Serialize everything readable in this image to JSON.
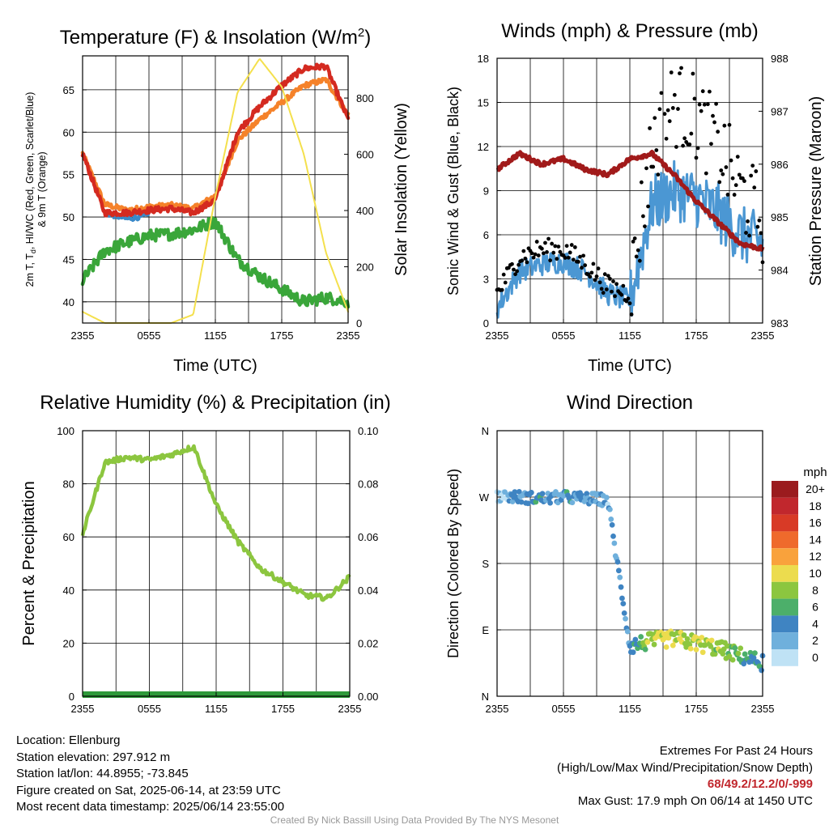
{
  "colors": {
    "temp": "#d42a20",
    "temp9m": "#f5822a",
    "heat_index": "#3a89c9",
    "dewpoint": "#3aa63a",
    "insolation": "#f4e04d",
    "wind": "#4b97d3",
    "gust": "#000000",
    "pressure": "#a11a1a",
    "rh": "#8cc63f",
    "precip": "#2e9a3a"
  },
  "time_ticks": [
    "2355",
    "0555",
    "1155",
    "1755",
    "2355"
  ],
  "charts": {
    "temperature": {
      "title": "Temperature (F) & Insolation (W/m²)",
      "title_main": "Temperature (F) & Insolation (W/m",
      "title_sup": "2",
      "title_tail": ")",
      "xlabel": "Time (UTC)",
      "ylabel_line1": "2m T, Td, HI/WC (Red, Green, Scarlet/Blue)",
      "ylabel_line2": "& 9m T (Orange)",
      "ylabel_line1_pre": "2m T, T",
      "ylabel_line1_sub": "d",
      "ylabel_line1_post": ", HI/WC (Red, Green, Scarlet/Blue)",
      "y2label": "Solar Insolation (Yellow)",
      "yticks": [
        "40",
        "45",
        "50",
        "55",
        "60",
        "65"
      ],
      "y2ticks": [
        "0",
        "200",
        "400",
        "600",
        "800"
      ]
    },
    "winds": {
      "title": "Winds (mph) & Pressure (mb)",
      "xlabel": "Time (UTC)",
      "ylabel": "Sonic Wind & Gust (Blue, Black)",
      "y2label": "Station Pressure (Maroon)",
      "yticks": [
        "0",
        "3",
        "6",
        "9",
        "12",
        "15",
        "18"
      ],
      "y2ticks": [
        "983",
        "984",
        "985",
        "986",
        "987",
        "988"
      ]
    },
    "humidity": {
      "title": "Relative Humidity (%) & Precipitation (in)",
      "ylabel": "Percent & Precipitation",
      "yticks": [
        "0",
        "20",
        "40",
        "60",
        "80",
        "100"
      ],
      "y2ticks": [
        "0.00",
        "0.02",
        "0.04",
        "0.06",
        "0.08",
        "0.10"
      ]
    },
    "direction": {
      "title": "Wind Direction",
      "ylabel": "Direction (Colored By Speed)",
      "yticks": [
        "N",
        "E",
        "S",
        "W",
        "N"
      ],
      "colorbar_title": "mph",
      "colorbar_labels": [
        "20+",
        "18",
        "16",
        "14",
        "12",
        "10",
        "8",
        "6",
        "4",
        "2",
        "0"
      ],
      "colorbar_colors": [
        "#9b1b1e",
        "#c1272d",
        "#d83a26",
        "#ef6a2c",
        "#f9a23c",
        "#ecdc4e",
        "#8cc63f",
        "#4caf6a",
        "#3f84c2",
        "#6fb0dc",
        "#bfe2f5"
      ]
    }
  },
  "info": {
    "location": "Location: Ellenburg",
    "elevation": "Station elevation: 297.912 m",
    "latlon": "Station lat/lon: 44.8955; -73.845",
    "created": "Figure created on Sat, 2025-06-14, at 23:59 UTC",
    "recent": "Most recent data timestamp: 2025/06/14 23:55:00"
  },
  "extremes": {
    "heading": "Extremes For Past 24 Hours",
    "subheading": "(High/Low/Max Wind/Precipitation/Snow Depth)",
    "values": "68/49.2/12.2/0/-999",
    "max_gust": "Max Gust: 17.9 mph On 06/14 at 1450 UTC"
  },
  "credit": "Created By Nick Bassill Using Data Provided By The NYS Mesonet",
  "chart_data": [
    {
      "type": "line",
      "title": "Temperature (F) & Insolation (W/m2)",
      "xlabel": "Time (UTC)",
      "ylabel": "2m T, Td, HI/WC (Red, Green, Scarlet/Blue) & 9m T (Orange)",
      "y2label": "Solar Insolation (Yellow)",
      "x": [
        "2355",
        "0155",
        "0355",
        "0555",
        "0755",
        "0955",
        "1155",
        "1355",
        "1555",
        "1755",
        "1955",
        "2155",
        "2355"
      ],
      "ylim": [
        37.5,
        69
      ],
      "y2lim": [
        0,
        950
      ],
      "series": [
        {
          "name": "2m T",
          "axis": "y",
          "values": [
            57.5,
            50.5,
            50.5,
            50.8,
            51,
            50.5,
            52,
            60,
            63,
            65.5,
            67.5,
            67.8,
            61.5
          ]
        },
        {
          "name": "9m T",
          "axis": "y",
          "values": [
            57.5,
            51.5,
            50.8,
            51.2,
            51.4,
            51,
            52.5,
            59,
            61.5,
            63.5,
            65.5,
            66.2,
            62
          ]
        },
        {
          "name": "Td",
          "axis": "y",
          "values": [
            42.5,
            46,
            47,
            47.8,
            48,
            48.5,
            49.5,
            45,
            43,
            41.5,
            40,
            40.5,
            40
          ]
        },
        {
          "name": "HI/WC",
          "axis": "y",
          "values": [
            null,
            50.5,
            49.8,
            50.2,
            null,
            null,
            null,
            null,
            null,
            null,
            null,
            null,
            null
          ]
        },
        {
          "name": "Solar Insolation",
          "axis": "y2",
          "values": [
            40,
            0,
            0,
            0,
            0,
            30,
            450,
            820,
            940,
            840,
            600,
            250,
            40
          ]
        }
      ]
    },
    {
      "type": "line",
      "title": "Winds (mph) & Pressure (mb)",
      "xlabel": "Time (UTC)",
      "ylabel": "Sonic Wind & Gust (Blue, Black)",
      "y2label": "Station Pressure (Maroon)",
      "x": [
        "2355",
        "0155",
        "0355",
        "0555",
        "0755",
        "0955",
        "1155",
        "1355",
        "1555",
        "1755",
        "1955",
        "2155",
        "2355"
      ],
      "ylim": [
        0,
        18
      ],
      "y2lim": [
        983,
        988
      ],
      "series": [
        {
          "name": "Sonic Wind",
          "axis": "y",
          "values": [
            1,
            3.5,
            4,
            4.2,
            3.5,
            2,
            1.5,
            8,
            9,
            8.5,
            7.5,
            6,
            5.5
          ]
        },
        {
          "name": "Gust",
          "axis": "y",
          "values": [
            2,
            4.5,
            5,
            5,
            4,
            2.5,
            2,
            12,
            15,
            14,
            12,
            9,
            7
          ]
        },
        {
          "name": "Station Pressure",
          "axis": "y2",
          "values": [
            985.9,
            986.2,
            986.0,
            986.1,
            985.9,
            985.8,
            986.1,
            986.2,
            985.8,
            985.3,
            984.9,
            984.5,
            984.4
          ]
        }
      ]
    },
    {
      "type": "line",
      "title": "Relative Humidity (%) & Precipitation (in)",
      "ylabel": "Percent & Precipitation",
      "x": [
        "2355",
        "0155",
        "0355",
        "0555",
        "0755",
        "0955",
        "1155",
        "1355",
        "1555",
        "1755",
        "1955",
        "2155",
        "2355"
      ],
      "ylim": [
        0,
        100
      ],
      "y2lim": [
        0,
        0.1
      ],
      "series": [
        {
          "name": "Relative Humidity",
          "axis": "y",
          "values": [
            61,
            88,
            90,
            89,
            91,
            94,
            72,
            58,
            48,
            43,
            38,
            37,
            45
          ]
        },
        {
          "name": "Precipitation",
          "axis": "y2",
          "values": [
            0,
            0,
            0,
            0,
            0,
            0,
            0,
            0,
            0,
            0,
            0,
            0,
            0
          ]
        }
      ]
    },
    {
      "type": "scatter",
      "title": "Wind Direction",
      "ylabel": "Direction (Colored By Speed)",
      "x": [
        "2355",
        "0155",
        "0355",
        "0555",
        "0755",
        "0955",
        "1155",
        "1355",
        "1555",
        "1755",
        "1955",
        "2155",
        "2355"
      ],
      "y_categories": [
        "N",
        "E",
        "S",
        "W",
        "N"
      ],
      "colorbar": {
        "title": "mph",
        "range": [
          0,
          20
        ]
      },
      "series": [
        {
          "name": "Direction (deg)",
          "values": [
            272,
            270,
            268,
            270,
            268,
            266,
            68,
            75,
            78,
            72,
            65,
            55,
            45
          ]
        },
        {
          "name": "Speed (mph)",
          "values": [
            1,
            3,
            4,
            4,
            3,
            2,
            3,
            9,
            10,
            9,
            8,
            6,
            4
          ]
        }
      ]
    }
  ]
}
